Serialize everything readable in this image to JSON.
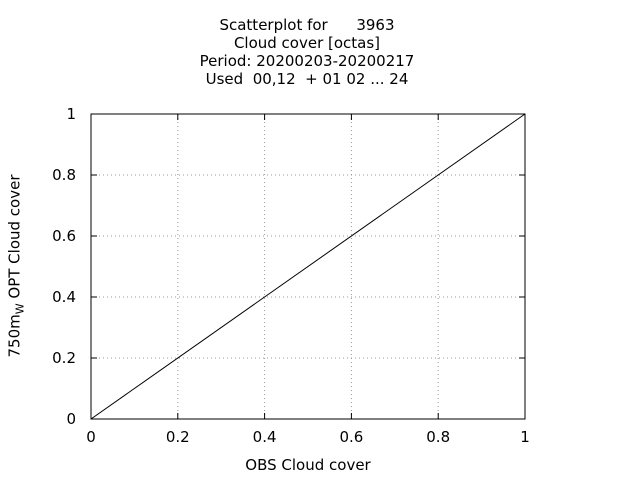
{
  "chart_data": {
    "type": "scatter",
    "title_lines": [
      "Scatterplot for      3963",
      "Cloud cover [octas]",
      "Period: 20200203-20200217",
      "Used  00,12  + 01 02 ... 24"
    ],
    "xlabel": "OBS Cloud cover",
    "ylabel": {
      "main": "750m",
      "sub": "W",
      "rest": " OPT Cloud cover"
    },
    "xlim": [
      0,
      1
    ],
    "ylim": [
      0,
      1
    ],
    "xticks": [
      "0",
      "0.2",
      "0.4",
      "0.6",
      "0.8",
      "1"
    ],
    "yticks": [
      "0",
      "0.2",
      "0.4",
      "0.6",
      "0.8",
      "1"
    ],
    "grid": true,
    "series": [
      {
        "x": [
          0,
          1
        ],
        "y": [
          0,
          1
        ]
      }
    ]
  }
}
